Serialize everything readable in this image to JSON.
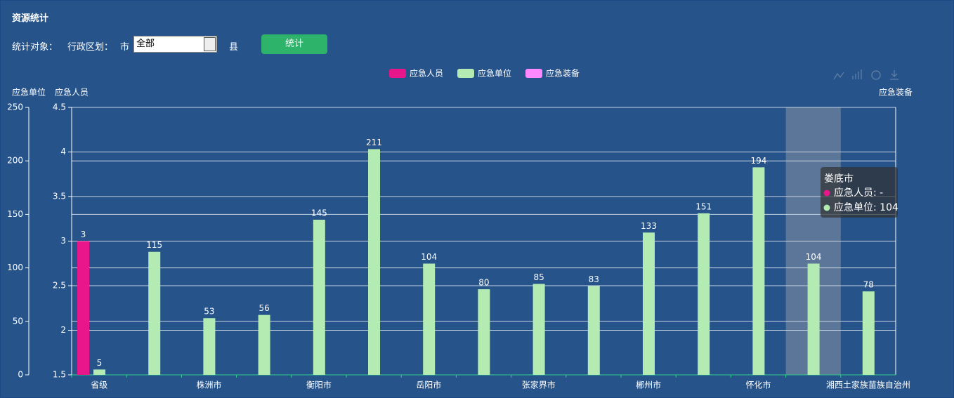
{
  "header": {
    "title": "资源统计"
  },
  "form": {
    "object_label": "统计对象：",
    "region_label": "行政区划：",
    "city_label": "市",
    "city_select": "全部",
    "county_label": "县",
    "submit": "统计"
  },
  "chart_data": {
    "type": "bar",
    "categories": [
      "省级",
      null,
      "株洲市",
      null,
      "衡阳市",
      null,
      "岳阳市",
      null,
      "张家界市",
      null,
      "郴州市",
      null,
      "怀化市",
      null,
      "湘西土家族苗族自治州"
    ],
    "series": [
      {
        "name": "应急人员",
        "color": "#e8168a",
        "values": [
          3,
          null,
          null,
          null,
          null,
          null,
          null,
          null,
          null,
          null,
          null,
          null,
          null,
          null,
          null
        ]
      },
      {
        "name": "应急单位",
        "color": "#b3ebb3",
        "axis": "y2",
        "values": [
          5,
          115,
          53,
          56,
          145,
          211,
          104,
          80,
          85,
          83,
          133,
          151,
          194,
          104,
          78
        ]
      },
      {
        "name": "应急装备",
        "color": "#ff88ff",
        "axis": "y3",
        "values": [
          null,
          null,
          null,
          null,
          null,
          null,
          null,
          null,
          null,
          null,
          null,
          null,
          null,
          null,
          null
        ]
      }
    ],
    "ylabel": "应急人员",
    "ylim": [
      1.5,
      4.5
    ],
    "yticks": [
      1.5,
      2,
      2.5,
      3,
      3.5,
      4,
      4.5
    ],
    "y2label": "应急单位",
    "y2lim": [
      0,
      250
    ],
    "y2ticks": [
      0,
      50,
      100,
      150,
      200,
      250
    ],
    "y3label": "应急装备",
    "grid": true,
    "legend": "top",
    "hover_index": 13,
    "tooltip": {
      "title": "娄底市",
      "rows": [
        "应急人员: -",
        "应急单位: 104"
      ]
    }
  }
}
